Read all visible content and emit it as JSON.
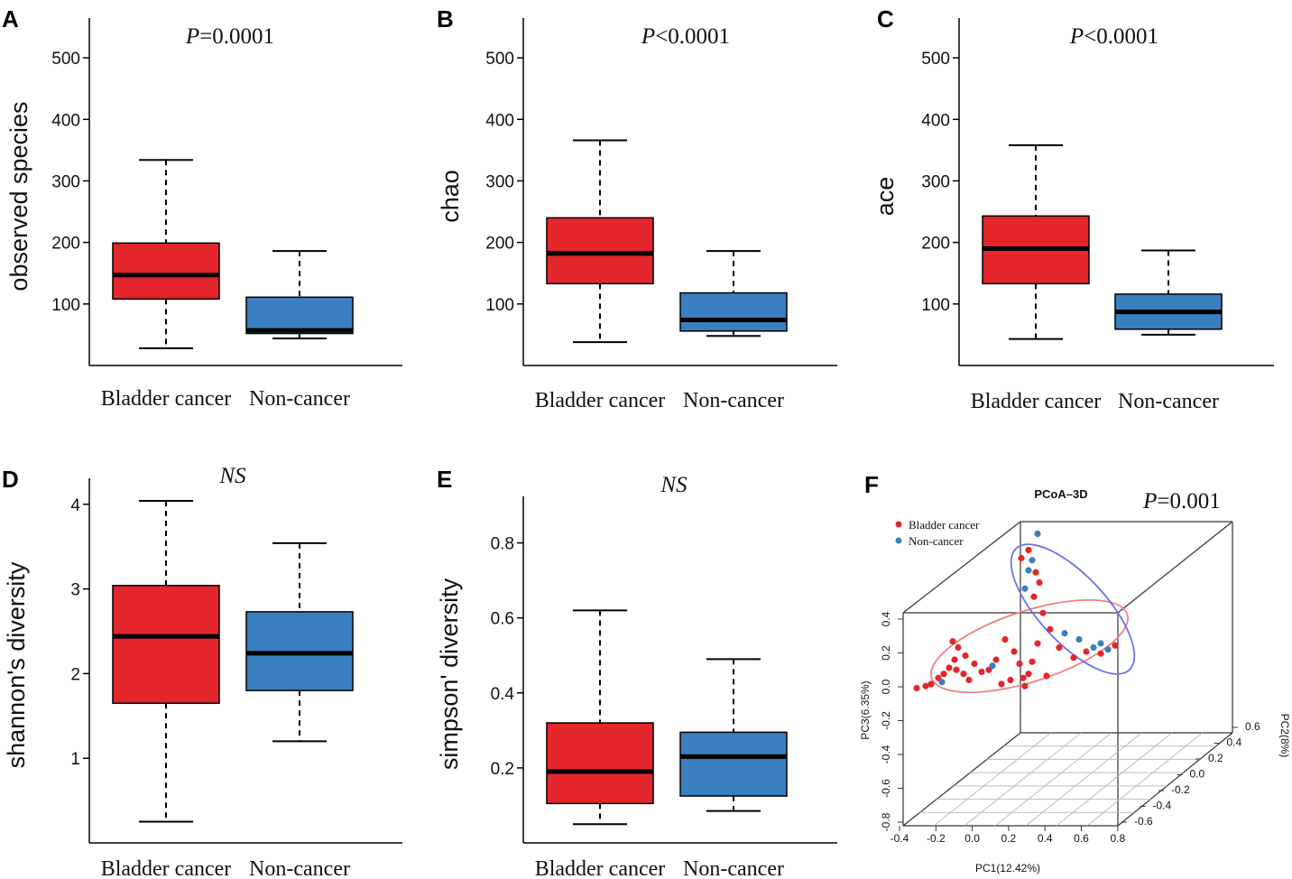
{
  "colors": {
    "bladder": "#e3262b",
    "noncancer": "#3a7fbf",
    "axis": "#000000",
    "ellipse_red": "#f08080",
    "ellipse_blue": "#7070f0"
  },
  "chart_data": [
    {
      "panel": "A",
      "type": "box",
      "title_italic": "P",
      "title_rest": "=0.0001",
      "ylabel": "observed species",
      "ylim": [
        0,
        550
      ],
      "yticks": [
        100,
        200,
        300,
        400,
        500
      ],
      "categories": [
        "Bladder cancer",
        "Non-cancer"
      ],
      "boxes": [
        {
          "name": "Bladder cancer",
          "whisker_low": 28,
          "q1": 108,
          "median": 147,
          "q3": 199,
          "whisker_high": 334
        },
        {
          "name": "Non-cancer",
          "whisker_low": 44,
          "q1": 52,
          "median": 57,
          "q3": 111,
          "whisker_high": 186
        }
      ]
    },
    {
      "panel": "B",
      "type": "box",
      "title_italic": "P",
      "title_rest": "<0.0001",
      "ylabel": "chao",
      "ylim": [
        0,
        550
      ],
      "yticks": [
        100,
        200,
        300,
        400,
        500
      ],
      "categories": [
        "Bladder cancer",
        "Non-cancer"
      ],
      "boxes": [
        {
          "name": "Bladder cancer",
          "whisker_low": 38,
          "q1": 133,
          "median": 182,
          "q3": 240,
          "whisker_high": 366
        },
        {
          "name": "Non-cancer",
          "whisker_low": 48,
          "q1": 56,
          "median": 74,
          "q3": 118,
          "whisker_high": 186
        }
      ]
    },
    {
      "panel": "C",
      "type": "box",
      "title_italic": "P",
      "title_rest": "<0.0001",
      "ylabel": "ace",
      "ylim": [
        0,
        550
      ],
      "yticks": [
        100,
        200,
        300,
        400,
        500
      ],
      "categories": [
        "Bladder cancer",
        "Non-cancer"
      ],
      "boxes": [
        {
          "name": "Bladder cancer",
          "whisker_low": 43,
          "q1": 133,
          "median": 190,
          "q3": 243,
          "whisker_high": 358
        },
        {
          "name": "Non-cancer",
          "whisker_low": 50,
          "q1": 59,
          "median": 87,
          "q3": 116,
          "whisker_high": 187
        }
      ]
    },
    {
      "panel": "D",
      "type": "box",
      "title_italic": "NS",
      "title_rest": "",
      "ylabel": "shannon's diversity",
      "ylim": [
        0,
        4.2
      ],
      "yticks": [
        1,
        2,
        3,
        4
      ],
      "categories": [
        "Bladder cancer",
        "Non-cancer"
      ],
      "boxes": [
        {
          "name": "Bladder cancer",
          "whisker_low": 0.25,
          "q1": 1.65,
          "median": 2.44,
          "q3": 3.04,
          "whisker_high": 4.04
        },
        {
          "name": "Non-cancer",
          "whisker_low": 1.2,
          "q1": 1.8,
          "median": 2.24,
          "q3": 2.73,
          "whisker_high": 3.54
        }
      ]
    },
    {
      "panel": "E",
      "type": "box",
      "title_italic": "NS",
      "title_rest": "",
      "ylabel": "simpson' diversity",
      "ylim": [
        0,
        0.9
      ],
      "yticks": [
        "0.2",
        "0.4",
        "0.6",
        "0.8"
      ],
      "categories": [
        "Bladder cancer",
        "Non-cancer"
      ],
      "boxes": [
        {
          "name": "Bladder cancer",
          "whisker_low": 0.05,
          "q1": 0.105,
          "median": 0.19,
          "q3": 0.32,
          "whisker_high": 0.62
        },
        {
          "name": "Non-cancer",
          "whisker_low": 0.085,
          "q1": 0.125,
          "median": 0.23,
          "q3": 0.295,
          "whisker_high": 0.49
        }
      ]
    },
    {
      "panel": "F",
      "type": "scatter",
      "title": "PCoA–3D",
      "p_italic": "P",
      "p_rest": "=0.001",
      "legend": [
        "Bladder cancer",
        "Non-cancer"
      ],
      "xlabel": "PC1(12.42%)",
      "ylabel": "PC3(6.35%)",
      "zlabel": "PC2(8%)",
      "xticks": [
        "-0.4",
        "-0.2",
        "0.0",
        "0.2",
        "0.4",
        "0.6",
        "0.8"
      ],
      "yticks": [
        "-0.8",
        "-0.6",
        "-0.4",
        "-0.2",
        "0.0",
        "0.2",
        "0.4"
      ],
      "zticks": [
        "-0.6",
        "-0.4",
        "-0.2",
        "0.0",
        "0.2",
        "0.4",
        "0.6"
      ],
      "series": [
        {
          "name": "Bladder cancer",
          "points": [
            [
              -0.32,
              -0.02
            ],
            [
              -0.27,
              -0.01
            ],
            [
              -0.24,
              0.0
            ],
            [
              -0.2,
              0.03
            ],
            [
              -0.17,
              0.05
            ],
            [
              -0.14,
              0.08
            ],
            [
              -0.11,
              0.12
            ],
            [
              -0.1,
              0.07
            ],
            [
              -0.06,
              0.05
            ],
            [
              -0.03,
              0.02
            ],
            [
              -0.12,
              0.21
            ],
            [
              -0.09,
              0.18
            ],
            [
              -0.05,
              0.14
            ],
            [
              0.0,
              0.1
            ],
            [
              0.04,
              0.06
            ],
            [
              0.08,
              0.07
            ],
            [
              0.12,
              0.12
            ],
            [
              0.17,
              0.22
            ],
            [
              0.22,
              0.16
            ],
            [
              0.25,
              0.1
            ],
            [
              0.27,
              0.03
            ],
            [
              0.3,
              0.05
            ],
            [
              0.32,
              0.11
            ],
            [
              0.35,
              0.2
            ],
            [
              0.38,
              0.35
            ],
            [
              0.36,
              0.5
            ],
            [
              0.34,
              0.55
            ],
            [
              0.3,
              0.66
            ],
            [
              0.26,
              0.62
            ],
            [
              0.33,
              0.43
            ],
            [
              0.42,
              0.27
            ],
            [
              0.47,
              0.18
            ],
            [
              0.55,
              0.13
            ],
            [
              0.62,
              0.16
            ],
            [
              0.7,
              0.15
            ],
            [
              0.78,
              0.19
            ],
            [
              0.2,
              0.02
            ],
            [
              0.28,
              -0.01
            ],
            [
              0.4,
              0.04
            ],
            [
              0.15,
              0.0
            ]
          ]
        },
        {
          "name": "Non-cancer",
          "points": [
            [
              -0.18,
              0.01
            ],
            [
              0.1,
              0.09
            ],
            [
              0.32,
              0.61
            ],
            [
              0.35,
              0.74
            ],
            [
              0.28,
              0.47
            ],
            [
              0.5,
              0.25
            ],
            [
              0.58,
              0.22
            ],
            [
              0.66,
              0.18
            ],
            [
              0.74,
              0.17
            ],
            [
              0.7,
              0.2
            ],
            [
              0.3,
              0.56
            ]
          ]
        }
      ]
    }
  ]
}
